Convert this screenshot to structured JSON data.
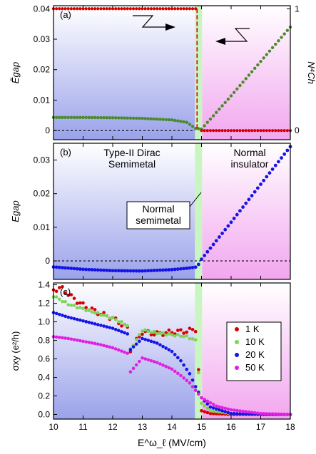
{
  "panels": {
    "a": {
      "tag": "(a)"
    },
    "b": {
      "tag": "(b)",
      "left_label": "Type-II Dirac\nSemimetal",
      "right_label": "Normal\ninsulator",
      "center_box": "Normal\nsemimetal"
    },
    "c": {
      "tag": "(c)"
    }
  },
  "colors": {
    "semimetal_bg": "#9aa2ea",
    "insulator_bg": "#f2a6ef",
    "transition_strip": "#c8f5c0",
    "red": "#d40000",
    "green": "#4a8a2a",
    "blue": "#1414e6",
    "lightgreen": "#7fd35a",
    "magenta": "#e020e0"
  },
  "chart_data": [
    {
      "type": "line",
      "panel": "a",
      "ylabel": "Ẽgap",
      "y2label": "N⁴Ch",
      "ylim": [
        -0.003,
        0.041
      ],
      "y2lim": [
        -0.075,
        1.025
      ],
      "yticks": [
        0,
        0.01,
        0.02,
        0.03,
        0.04
      ],
      "y2ticks": [
        0,
        1
      ],
      "series": [
        {
          "id": "egap_tilde",
          "color": "#4a8a2a",
          "x": [
            10.0,
            11.0,
            12.0,
            13.0,
            14.0,
            14.5,
            14.8,
            15.0,
            16.0,
            17.0,
            18.0
          ],
          "y": [
            0.0043,
            0.0043,
            0.0042,
            0.004,
            0.0035,
            0.0027,
            0.0007,
            0.0005,
            0.0114,
            0.0227,
            0.034
          ]
        },
        {
          "id": "nch4",
          "color": "#d40000",
          "axis": "right",
          "x": [
            10.0,
            14.85,
            14.85,
            18.0
          ],
          "y": [
            1.0,
            1.0,
            0.0,
            0.0
          ]
        }
      ]
    },
    {
      "type": "line",
      "panel": "b",
      "ylabel": "Egap",
      "ylim": [
        -0.0055,
        0.035
      ],
      "yticks": [
        0,
        0.01,
        0.02,
        0.03
      ],
      "series": [
        {
          "id": "egap",
          "color": "#1414e6",
          "x": [
            10.0,
            11.0,
            12.0,
            13.0,
            14.0,
            14.5,
            14.85,
            15.0,
            16.0,
            17.0,
            18.0
          ],
          "y": [
            -0.0018,
            -0.0025,
            -0.0029,
            -0.003,
            -0.0026,
            -0.0022,
            -0.0018,
            0.0005,
            0.0115,
            0.0228,
            0.034
          ]
        }
      ]
    },
    {
      "type": "scatter",
      "panel": "c",
      "ylabel": "σxy (e²/h)",
      "xlabel": "E^ω_ℓ (MV/cm)",
      "ylim": [
        -0.05,
        1.42
      ],
      "yticks": [
        0,
        0.2,
        0.4,
        0.6,
        0.8,
        1.0,
        1.2,
        1.4
      ],
      "xlim": [
        10,
        18
      ],
      "xticks": [
        10,
        11,
        12,
        13,
        14,
        15,
        16,
        17,
        18
      ],
      "legend_position": "right",
      "series": [
        {
          "name": "1 K",
          "color": "#d40000",
          "x": [
            10.0,
            10.3,
            10.6,
            11.0,
            11.5,
            12.0,
            12.5,
            12.6,
            13.0,
            13.5,
            14.0,
            14.5,
            14.8,
            15.0,
            15.3,
            16.0,
            17.0,
            18.0
          ],
          "y": [
            1.35,
            1.36,
            1.27,
            1.18,
            1.1,
            1.04,
            0.93,
            0.7,
            0.89,
            0.87,
            0.89,
            0.9,
            0.92,
            0.04,
            0.01,
            0.0,
            0.0,
            0.0
          ]
        },
        {
          "name": "10 K",
          "color": "#7fd35a",
          "x": [
            10.0,
            10.5,
            11.0,
            11.5,
            12.0,
            12.5,
            12.6,
            13.0,
            13.5,
            14.0,
            14.5,
            14.8,
            15.0,
            15.3,
            16.0,
            17.0,
            18.0
          ],
          "y": [
            1.28,
            1.19,
            1.14,
            1.09,
            1.04,
            0.96,
            0.7,
            0.91,
            0.88,
            0.86,
            0.84,
            0.8,
            0.12,
            0.04,
            0.01,
            0.0,
            0.0
          ]
        },
        {
          "name": "20 K",
          "color": "#1414e6",
          "x": [
            10.0,
            10.5,
            11.0,
            11.5,
            12.0,
            12.5,
            12.6,
            13.0,
            13.5,
            14.0,
            14.3,
            14.6,
            14.8,
            15.0,
            15.3,
            16.0,
            17.0,
            18.0
          ],
          "y": [
            1.1,
            1.05,
            1.01,
            0.97,
            0.93,
            0.87,
            0.7,
            0.82,
            0.77,
            0.68,
            0.58,
            0.44,
            0.3,
            0.18,
            0.08,
            0.01,
            0.0,
            0.0
          ]
        },
        {
          "name": "50 K",
          "color": "#e020e0",
          "x": [
            10.0,
            10.5,
            11.0,
            11.5,
            12.0,
            12.5,
            12.6,
            13.0,
            13.5,
            14.0,
            14.3,
            14.6,
            14.8,
            15.0,
            15.5,
            16.0,
            17.0,
            18.0
          ],
          "y": [
            0.84,
            0.82,
            0.79,
            0.76,
            0.72,
            0.66,
            0.46,
            0.61,
            0.56,
            0.49,
            0.42,
            0.34,
            0.26,
            0.18,
            0.09,
            0.05,
            0.01,
            0.0
          ]
        }
      ]
    }
  ]
}
